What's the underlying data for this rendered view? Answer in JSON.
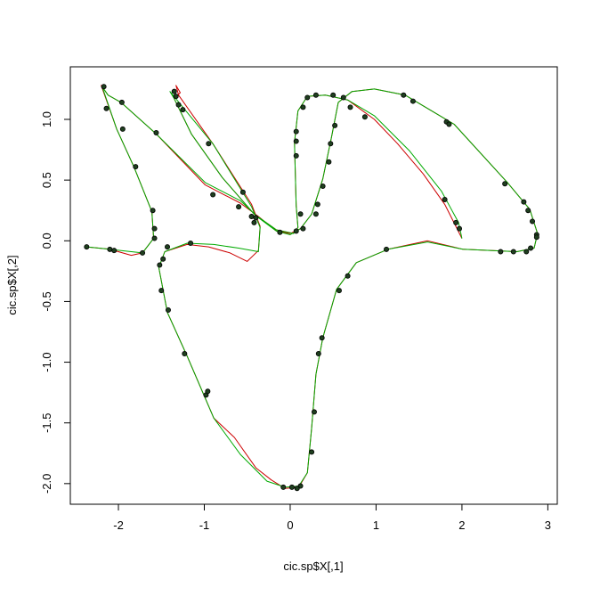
{
  "chart_data": {
    "type": "scatter",
    "x_label": "cic.sp$X[,1]",
    "y_label": "cic.sp$X[,2]",
    "xlim": [
      -2.56,
      3.11
    ],
    "ylim": [
      -2.17,
      1.433
    ],
    "xticks": [
      -2,
      -1,
      0,
      1,
      2,
      3
    ],
    "yticks": [
      {
        "value": -2,
        "label": "-2.0"
      },
      -1.5,
      {
        "value": -1,
        "label": "-1.0"
      },
      -0.5,
      {
        "value": 0,
        "label": "0.0"
      },
      0.5,
      {
        "value": 1,
        "label": "1.0"
      }
    ],
    "series": [
      {
        "type": "line",
        "color": "#cc0000",
        "x": [
          -2.37,
          -2.1,
          -1.85,
          -1.72,
          -1.59,
          -1.61,
          -1.82,
          -2.02,
          -2.2,
          -2.12,
          -1.97,
          -1.56,
          -0.99,
          -0.58,
          -0.37,
          -0.16,
          0,
          0.12,
          0.25,
          0.38,
          0.48,
          0.56,
          0.72,
          0.98,
          1.34,
          1.91,
          2.53,
          2.79,
          2.88,
          2.84,
          2.64,
          2.01,
          1.6,
          1.14,
          0.77,
          0.54,
          0.38,
          0.3,
          0.25,
          0.2,
          0.1,
          -0.06,
          -0.22,
          -0.4,
          -0.65,
          -0.89,
          -1.2,
          -1.43,
          -1.53,
          -1.46,
          -1.2,
          -0.95,
          -0.7,
          -0.5,
          -0.37,
          -0.35,
          -0.45,
          -0.9,
          -1.3,
          -1.33,
          -1.28,
          -1.35,
          -1.15,
          -0.79,
          -0.42,
          -0.16,
          0.04,
          0.09,
          0.07,
          0.05,
          0.09,
          0.2,
          0.41,
          0.67,
          0.98,
          1.25,
          1.55,
          1.8,
          2.0
        ],
        "y": [
          -0.05,
          -0.07,
          -0.12,
          -0.1,
          0.02,
          0.24,
          0.61,
          0.92,
          1.28,
          1.2,
          1.14,
          0.88,
          0.46,
          0.31,
          0.2,
          0.08,
          0.06,
          0.1,
          0.22,
          0.51,
          0.85,
          1.14,
          1.23,
          1.25,
          1.2,
          0.96,
          0.48,
          0.26,
          0.06,
          -0.06,
          -0.09,
          -0.07,
          0,
          -0.07,
          -0.18,
          -0.4,
          -0.8,
          -1.1,
          -1.54,
          -1.91,
          -2.03,
          -2.04,
          -1.97,
          -1.87,
          -1.62,
          -1.46,
          -0.95,
          -0.59,
          -0.22,
          -0.09,
          -0.03,
          -0.05,
          -0.1,
          -0.17,
          -0.08,
          0.12,
          0.3,
          0.8,
          1.2,
          1.28,
          1.22,
          1.17,
          0.88,
          0.52,
          0.22,
          0.09,
          0.06,
          0.11,
          0.29,
          0.81,
          1.07,
          1.19,
          1.2,
          1.16,
          1.0,
          0.8,
          0.55,
          0.3,
          0.02
        ]
      },
      {
        "type": "line",
        "color": "#00aa00",
        "x": [
          -2.37,
          -2.1,
          -1.85,
          -1.72,
          -1.59,
          -1.61,
          -1.82,
          -2.02,
          -2.19,
          -2.12,
          -1.97,
          -1.56,
          -0.99,
          -0.58,
          -0.37,
          -0.16,
          0,
          0.12,
          0.25,
          0.38,
          0.48,
          0.56,
          0.72,
          0.98,
          1.34,
          1.91,
          2.53,
          2.79,
          2.88,
          2.84,
          2.64,
          2.01,
          1.6,
          1.14,
          0.77,
          0.54,
          0.38,
          0.3,
          0.25,
          0.2,
          0.1,
          -0.06,
          -0.27,
          -0.58,
          -0.89,
          -1.2,
          -1.43,
          -1.53,
          -1.46,
          -1.2,
          -0.89,
          -0.6,
          -0.37,
          -0.35,
          -0.45,
          -0.9,
          -1.4,
          -1.35,
          -1.15,
          -0.79,
          -0.42,
          -0.16,
          0.04,
          0.09,
          0.07,
          0.05,
          0.09,
          0.2,
          0.41,
          0.67,
          0.98,
          1.39,
          1.76,
          1.96,
          2.0
        ],
        "y": [
          -0.05,
          -0.07,
          -0.09,
          -0.1,
          0.02,
          0.24,
          0.61,
          0.92,
          1.27,
          1.2,
          1.14,
          0.88,
          0.48,
          0.33,
          0.19,
          0.08,
          0.05,
          0.1,
          0.22,
          0.51,
          0.85,
          1.14,
          1.23,
          1.25,
          1.2,
          0.96,
          0.48,
          0.26,
          0.06,
          -0.06,
          -0.09,
          -0.07,
          -0.01,
          -0.07,
          -0.18,
          -0.4,
          -0.8,
          -1.1,
          -1.54,
          -1.91,
          -2.02,
          -2.03,
          -1.98,
          -1.76,
          -1.46,
          -0.95,
          -0.59,
          -0.22,
          -0.09,
          -0.02,
          -0.03,
          -0.06,
          -0.09,
          0.11,
          0.28,
          0.8,
          1.23,
          1.17,
          0.88,
          0.52,
          0.22,
          0.09,
          0.06,
          0.11,
          0.29,
          0.81,
          1.07,
          1.19,
          1.2,
          1.16,
          1.03,
          0.74,
          0.41,
          0.15,
          0.02
        ]
      },
      {
        "type": "scatter",
        "color": "#1f3f1f",
        "x": [
          -2.37,
          -2.1,
          -2.05,
          -1.72,
          -1.58,
          -1.58,
          -1.6,
          -1.8,
          -1.95,
          -2.17,
          -2.14,
          -1.96,
          -1.56,
          -0.9,
          -0.6,
          -0.55,
          -0.45,
          -0.12,
          0.07,
          0.15,
          0.12,
          0.3,
          0.32,
          0.38,
          0.45,
          0.47,
          0.52,
          0.07,
          0.07,
          0.07,
          0.15,
          0.2,
          0.3,
          0.5,
          0.62,
          0.7,
          0.87,
          1.32,
          1.43,
          1.82,
          1.85,
          1.8,
          1.93,
          1.97,
          2.5,
          2.72,
          2.77,
          2.82,
          2.87,
          2.87,
          2.8,
          2.75,
          2.6,
          2.45,
          1.12,
          0.67,
          0.57,
          0.37,
          0.33,
          0.28,
          0.25,
          0.12,
          0.08,
          0.02,
          -0.08,
          -0.98,
          -0.96,
          -1.23,
          -1.42,
          -1.5,
          -1.52,
          -1.48,
          -1.43,
          -1.16,
          -1.35,
          -1.33,
          -1.3,
          -1.25,
          -0.42,
          -0.4,
          -0.95
        ],
        "y": [
          -0.05,
          -0.07,
          -0.08,
          -0.1,
          0.02,
          0.1,
          0.25,
          0.61,
          0.92,
          1.27,
          1.09,
          1.14,
          0.89,
          0.38,
          0.28,
          0.4,
          0.2,
          0.07,
          0.08,
          0.1,
          0.22,
          0.22,
          0.3,
          0.45,
          0.65,
          0.8,
          0.95,
          0.82,
          0.9,
          0.7,
          1.1,
          1.18,
          1.2,
          1.2,
          1.18,
          1.1,
          1.02,
          1.2,
          1.15,
          0.98,
          0.96,
          0.34,
          0.15,
          0.1,
          0.47,
          0.32,
          0.25,
          0.16,
          0.05,
          0.03,
          -0.06,
          -0.09,
          -0.09,
          -0.09,
          -0.07,
          -0.29,
          -0.41,
          -0.8,
          -0.93,
          -1.41,
          -1.74,
          -2.02,
          -2.04,
          -2.03,
          -2.03,
          -1.27,
          -1.24,
          -0.93,
          -0.57,
          -0.41,
          -0.2,
          -0.15,
          -0.05,
          -0.02,
          1.23,
          1.19,
          1.12,
          1.08,
          0.15,
          0.19,
          0.8
        ]
      }
    ]
  }
}
